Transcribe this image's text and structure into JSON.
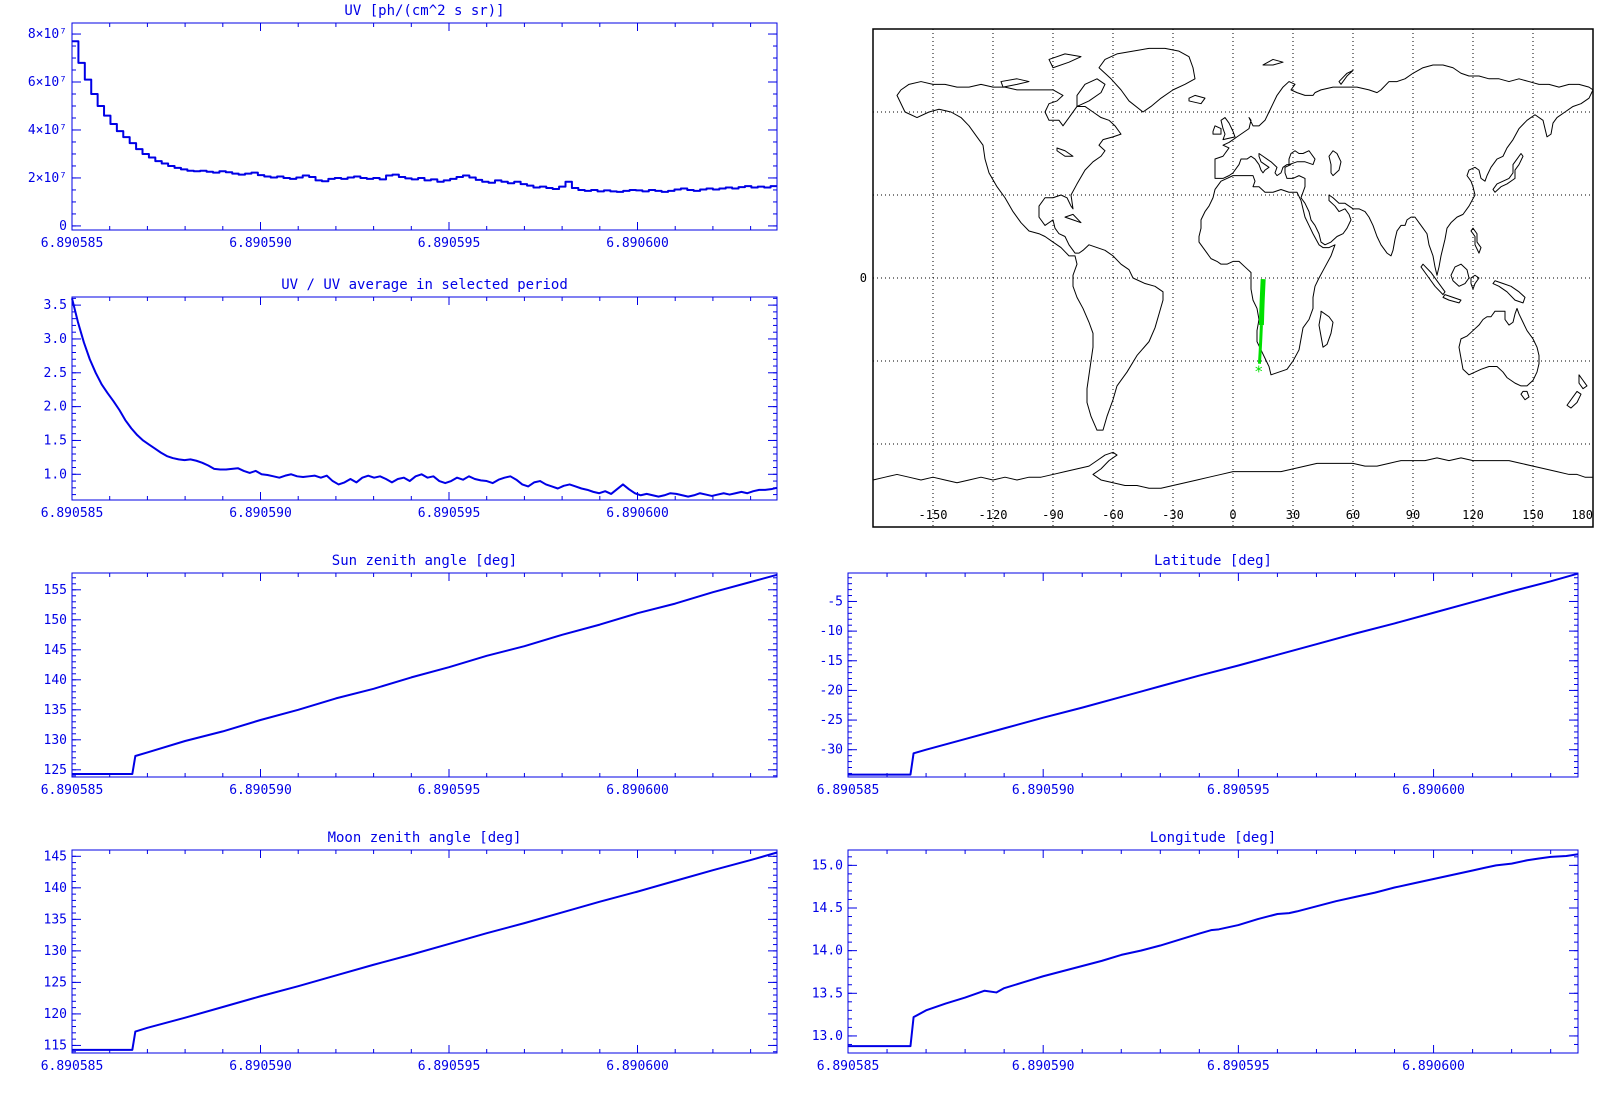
{
  "colors": {
    "plot": "#0000e6",
    "map_outline": "#000000",
    "track": "#00e000",
    "background": "#ffffff"
  },
  "time_axis": {
    "xlim": [
      0,
      18.7
    ],
    "minor_step": 1,
    "tick_positions": [
      0,
      5,
      10,
      15
    ],
    "tick_labels": [
      "6.890585",
      "6.890590",
      "6.890595",
      "6.890600"
    ]
  },
  "chart_data": [
    {
      "id": "uv",
      "type": "step",
      "title": "UV [ph/(cm^2 s sr)]",
      "y_unit": "1e7 ph/(cm^2 s sr)",
      "ylim": [
        -0.17,
        8.46
      ],
      "yticks": [
        0,
        2,
        4,
        6,
        8
      ],
      "ytick_labels": [
        "0",
        "2×10⁷",
        "4×10⁷",
        "6×10⁷",
        "8×10⁷"
      ],
      "y_minor": 0.5,
      "values": [
        7.7,
        6.8,
        6.1,
        5.5,
        5.0,
        4.6,
        4.25,
        3.95,
        3.7,
        3.45,
        3.2,
        3.0,
        2.85,
        2.7,
        2.6,
        2.5,
        2.42,
        2.36,
        2.3,
        2.28,
        2.3,
        2.26,
        2.22,
        2.28,
        2.24,
        2.18,
        2.14,
        2.18,
        2.22,
        2.12,
        2.06,
        2.02,
        2.06,
        2.0,
        1.96,
        2.02,
        2.1,
        2.04,
        1.9,
        1.86,
        1.96,
        2.0,
        1.96,
        2.02,
        2.06,
        2.0,
        1.96,
        2.0,
        1.94,
        2.1,
        2.14,
        2.04,
        1.98,
        1.94,
        2.0,
        1.9,
        1.94,
        1.84,
        1.9,
        1.96,
        2.04,
        2.1,
        2.02,
        1.92,
        1.84,
        1.8,
        1.9,
        1.84,
        1.78,
        1.84,
        1.74,
        1.68,
        1.6,
        1.64,
        1.58,
        1.54,
        1.64,
        1.84,
        1.58,
        1.5,
        1.46,
        1.5,
        1.44,
        1.48,
        1.44,
        1.42,
        1.46,
        1.5,
        1.48,
        1.44,
        1.5,
        1.46,
        1.42,
        1.46,
        1.52,
        1.56,
        1.5,
        1.46,
        1.52,
        1.56,
        1.52,
        1.56,
        1.6,
        1.56,
        1.62,
        1.66,
        1.6,
        1.64,
        1.6,
        1.66
      ]
    },
    {
      "id": "ratio",
      "type": "line",
      "title": "UV / UV average in selected period",
      "ylim": [
        0.62,
        3.62
      ],
      "yticks": [
        1.0,
        1.5,
        2.0,
        2.5,
        3.0,
        3.5
      ],
      "ytick_labels": [
        "1.0",
        "1.5",
        "2.0",
        "2.5",
        "3.0",
        "3.5"
      ],
      "y_minor": 0.1,
      "values": [
        3.6,
        3.25,
        2.95,
        2.7,
        2.5,
        2.33,
        2.2,
        2.08,
        1.95,
        1.8,
        1.68,
        1.58,
        1.5,
        1.44,
        1.38,
        1.32,
        1.27,
        1.24,
        1.22,
        1.21,
        1.22,
        1.2,
        1.17,
        1.13,
        1.08,
        1.07,
        1.07,
        1.08,
        1.09,
        1.05,
        1.02,
        1.05,
        1.0,
        0.99,
        0.97,
        0.95,
        0.98,
        1.0,
        0.97,
        0.96,
        0.97,
        0.98,
        0.95,
        0.98,
        0.9,
        0.85,
        0.88,
        0.93,
        0.88,
        0.95,
        0.98,
        0.95,
        0.97,
        0.93,
        0.88,
        0.93,
        0.95,
        0.9,
        0.97,
        1.0,
        0.95,
        0.97,
        0.9,
        0.87,
        0.9,
        0.95,
        0.92,
        0.97,
        0.93,
        0.91,
        0.9,
        0.87,
        0.92,
        0.95,
        0.97,
        0.92,
        0.85,
        0.82,
        0.88,
        0.9,
        0.85,
        0.82,
        0.79,
        0.83,
        0.85,
        0.82,
        0.79,
        0.77,
        0.74,
        0.72,
        0.75,
        0.71,
        0.78,
        0.85,
        0.78,
        0.72,
        0.69,
        0.71,
        0.69,
        0.67,
        0.69,
        0.72,
        0.71,
        0.69,
        0.67,
        0.69,
        0.72,
        0.7,
        0.68,
        0.7,
        0.72,
        0.7,
        0.72,
        0.74,
        0.72,
        0.75,
        0.77,
        0.77,
        0.78,
        0.8
      ]
    },
    {
      "id": "sza",
      "type": "line",
      "title": "Sun zenith angle [deg]",
      "ylim": [
        123.8,
        157.8
      ],
      "yticks": [
        125,
        130,
        135,
        140,
        145,
        150,
        155
      ],
      "ytick_labels": [
        "125",
        "130",
        "135",
        "140",
        "145",
        "150",
        "155"
      ],
      "y_minor": 1,
      "x": [
        0,
        1.6,
        1.68,
        2,
        3,
        4,
        5,
        6,
        7,
        8,
        9,
        10,
        11,
        12,
        13,
        14,
        15,
        16,
        17,
        18,
        18.7
      ],
      "y": [
        124.3,
        124.3,
        127.3,
        127.9,
        129.8,
        131.4,
        133.3,
        135.0,
        136.9,
        138.5,
        140.4,
        142.1,
        144.0,
        145.6,
        147.5,
        149.2,
        151.1,
        152.7,
        154.6,
        156.3,
        157.5
      ]
    },
    {
      "id": "mza",
      "type": "line",
      "title": "Moon zenith angle [deg]",
      "ylim": [
        113.8,
        146.0
      ],
      "yticks": [
        115,
        120,
        125,
        130,
        135,
        140,
        145
      ],
      "ytick_labels": [
        "115",
        "120",
        "125",
        "130",
        "135",
        "140",
        "145"
      ],
      "y_minor": 1,
      "x": [
        0,
        1.6,
        1.68,
        2,
        3,
        4,
        5,
        6,
        7,
        8,
        9,
        10,
        11,
        12,
        13,
        14,
        15,
        16,
        17,
        18,
        18.7
      ],
      "y": [
        114.3,
        114.3,
        117.2,
        117.8,
        119.4,
        121.1,
        122.8,
        124.4,
        126.1,
        127.8,
        129.4,
        131.1,
        132.8,
        134.4,
        136.1,
        137.8,
        139.4,
        141.1,
        142.8,
        144.4,
        145.6
      ]
    },
    {
      "id": "lat",
      "type": "line",
      "title": "Latitude [deg]",
      "ylim": [
        -34.6,
        -0.2
      ],
      "yticks": [
        -30,
        -25,
        -20,
        -15,
        -10,
        -5
      ],
      "ytick_labels": [
        "-30",
        "-25",
        "-20",
        "-15",
        "-10",
        "-5"
      ],
      "y_minor": 1,
      "x": [
        0,
        1.6,
        1.68,
        2,
        3,
        4,
        5,
        6,
        7,
        8,
        9,
        10,
        11,
        12,
        13,
        14,
        15,
        16,
        17,
        18,
        18.7
      ],
      "y": [
        -34.2,
        -34.2,
        -30.6,
        -30.0,
        -28.2,
        -26.4,
        -24.6,
        -22.9,
        -21.1,
        -19.3,
        -17.5,
        -15.8,
        -14.0,
        -12.2,
        -10.4,
        -8.7,
        -6.9,
        -5.1,
        -3.3,
        -1.6,
        -0.3
      ]
    },
    {
      "id": "lon",
      "type": "line",
      "title": "Longitude [deg]",
      "ylim": [
        12.8,
        15.18
      ],
      "yticks": [
        13.0,
        13.5,
        14.0,
        14.5,
        15.0
      ],
      "ytick_labels": [
        "13.0",
        "13.5",
        "14.0",
        "14.5",
        "15.0"
      ],
      "y_minor": 0.1,
      "x": [
        0,
        1.6,
        1.68,
        2,
        2.5,
        3,
        3.5,
        3.8,
        4,
        4.5,
        5,
        5.5,
        6,
        6.5,
        7,
        7.5,
        8,
        8.5,
        9,
        9.3,
        9.5,
        10,
        10.5,
        11,
        11.3,
        11.5,
        12,
        12.5,
        13,
        13.5,
        14,
        14.5,
        15,
        15.5,
        16,
        16.3,
        16.6,
        17,
        17.4,
        17.7,
        18,
        18.4,
        18.7
      ],
      "y": [
        12.88,
        12.88,
        13.22,
        13.3,
        13.38,
        13.45,
        13.53,
        13.51,
        13.56,
        13.63,
        13.7,
        13.76,
        13.82,
        13.88,
        13.95,
        14.0,
        14.06,
        14.13,
        14.2,
        14.24,
        14.25,
        14.3,
        14.37,
        14.43,
        14.44,
        14.46,
        14.52,
        14.58,
        14.63,
        14.68,
        14.74,
        14.79,
        14.84,
        14.89,
        14.94,
        14.97,
        15.0,
        15.02,
        15.06,
        15.08,
        15.1,
        15.11,
        15.13
      ]
    }
  ],
  "map": {
    "projection": "equirectangular",
    "lon_range": [
      -180,
      180
    ],
    "lat_range": [
      -90,
      90
    ],
    "lon_ticks": [
      -150,
      -120,
      -90,
      -60,
      -30,
      0,
      30,
      60,
      90,
      120,
      150,
      180
    ],
    "lon_tick_labels": [
      "-150",
      "-120",
      "-90",
      "-60",
      "-30",
      "0",
      "30",
      "60",
      "90",
      "120",
      "150",
      "180"
    ],
    "lat_gridlines": [
      -60,
      -30,
      0,
      30,
      60
    ],
    "lat_axis_label": "0",
    "track_segments": [
      {
        "width": 5,
        "points": [
          [
            15.08,
            -0.4
          ],
          [
            14.85,
            -4
          ],
          [
            14.6,
            -8
          ],
          [
            14.4,
            -12
          ],
          [
            14.2,
            -17
          ]
        ]
      },
      {
        "width": 3,
        "points": [
          [
            14.2,
            -17
          ],
          [
            13.9,
            -22
          ],
          [
            13.55,
            -27
          ],
          [
            13.22,
            -31
          ]
        ]
      }
    ],
    "marker": {
      "symbol": "*",
      "lon": 12.9,
      "lat": -33.8
    }
  }
}
